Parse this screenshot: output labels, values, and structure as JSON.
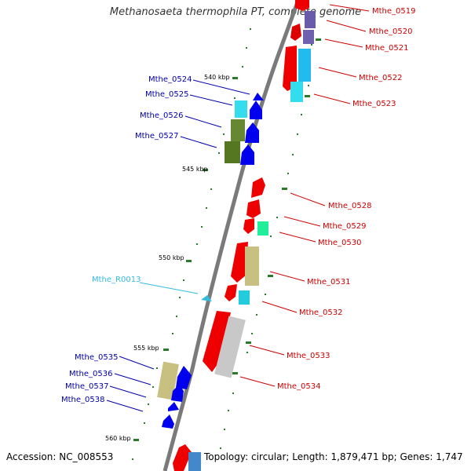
{
  "title": "Methanosaeta thermophila PT, complete genome",
  "accession": "Accession: NC_008553",
  "summary": "Topology: circular; Length: 1,879,471 bp; Genes: 1,747",
  "colors": {
    "backbone": "#7a7a7a",
    "forward_strand_gene": "#ff0000",
    "reverse_strand_gene": "#0000ff",
    "left_label": "#0000aa",
    "right_label": "#cc0000",
    "rna_label": "#33bbdd",
    "tick": "#2a7a2a"
  },
  "scale_labels": [
    "540 kbp",
    "545 kbp",
    "550 kbp",
    "555 kbp",
    "560 kbp"
  ],
  "left_genes": [
    "Mthe_0524",
    "Mthe_0525",
    "Mthe_0526",
    "Mthe_0527",
    "Mthe_0535",
    "Mthe_0536",
    "Mthe_0537",
    "Mthe_0538"
  ],
  "rna_gene": "Mthe_R0013",
  "right_genes": [
    "Mthe_0519",
    "Mthe_0520",
    "Mthe_0521",
    "Mthe_0522",
    "Mthe_0523",
    "Mthe_0528",
    "Mthe_0529",
    "Mthe_0530",
    "Mthe_0531",
    "Mthe_0532",
    "Mthe_0533",
    "Mthe_0534"
  ]
}
